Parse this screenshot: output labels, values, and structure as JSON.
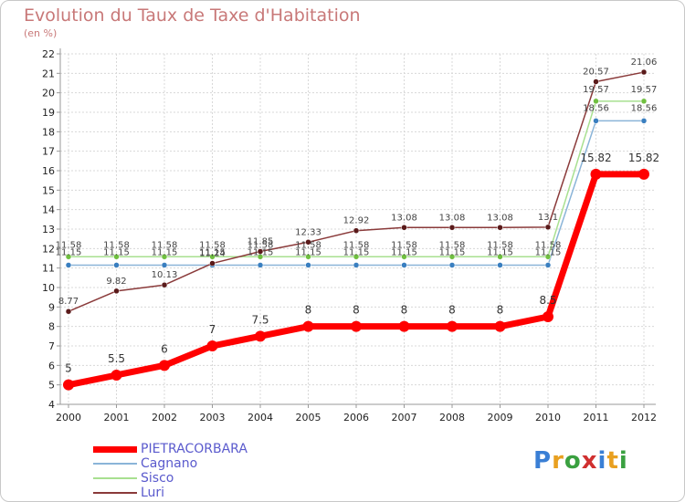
{
  "header": {
    "title": "Evolution du Taux de Taxe d'Habitation",
    "unit": "(en %)"
  },
  "brand": {
    "logo_letters": [
      "P",
      "r",
      "o",
      "x",
      "i",
      "t",
      "i"
    ],
    "logo_colors": [
      "#3a7fd5",
      "#e8a020",
      "#3aa040",
      "#d03030",
      "#3a7fd5",
      "#e8a020",
      "#3aa040"
    ]
  },
  "colors": {
    "grid": "#d8d8d8",
    "axis": "#999999",
    "legend_text": "#5a5acd",
    "title": "#c87878"
  },
  "chart_data": {
    "type": "line",
    "x": [
      "2000",
      "2001",
      "2002",
      "2003",
      "2004",
      "2005",
      "2006",
      "2007",
      "2008",
      "2009",
      "2010",
      "2011",
      "2012"
    ],
    "ylim": [
      4,
      22
    ],
    "yticks": [
      4,
      5,
      6,
      7,
      8,
      9,
      10,
      11,
      12,
      13,
      14,
      15,
      16,
      17,
      18,
      19,
      20,
      21,
      22
    ],
    "grid": true,
    "legend_position": "bottom-left",
    "series": [
      {
        "name": "PIETRACORBARA",
        "color": "#ff0000",
        "marker": "#ff0000",
        "width": 7,
        "values": [
          5,
          5.5,
          6,
          7,
          7.5,
          8,
          8,
          8,
          8,
          8,
          8.5,
          15.82,
          15.82
        ],
        "labels": [
          "5",
          "5.5",
          "6",
          "7",
          "7.5",
          "8",
          "8",
          "8",
          "8",
          "8",
          "8.5",
          "15.82",
          "15.82"
        ]
      },
      {
        "name": "Cagnano",
        "color": "#8ab4d8",
        "marker": "#3a7fc0",
        "width": 1.5,
        "values": [
          11.15,
          11.15,
          11.15,
          11.15,
          11.15,
          11.15,
          11.15,
          11.15,
          11.15,
          11.15,
          11.15,
          18.56,
          18.56
        ],
        "labels": [
          "11.15",
          "11.15",
          "11.15",
          "11.15",
          "11.15",
          "11.15",
          "11.15",
          "11.15",
          "11.15",
          "11.15",
          "11.15",
          "18.56",
          "18.56"
        ]
      },
      {
        "name": "Sisco",
        "color": "#a8e090",
        "marker": "#70c040",
        "width": 1.5,
        "values": [
          11.58,
          11.58,
          11.58,
          11.58,
          11.58,
          11.58,
          11.58,
          11.58,
          11.58,
          11.58,
          11.58,
          19.57,
          19.57
        ],
        "labels": [
          "11.58",
          "11.58",
          "11.58",
          "11.58",
          "11.58",
          "11.58",
          "11.58",
          "11.58",
          "11.58",
          "11.58",
          "11.58",
          "19.57",
          "19.57"
        ]
      },
      {
        "name": "Luri",
        "color": "#8a3a3a",
        "marker": "#5a1a1a",
        "width": 1.5,
        "values": [
          8.77,
          9.82,
          10.13,
          11.24,
          11.85,
          12.33,
          12.92,
          13.08,
          13.08,
          13.08,
          13.1,
          20.57,
          21.06
        ],
        "labels": [
          "8.77",
          "9.82",
          "10.13",
          "11.24",
          "11.85",
          "12.33",
          "12.92",
          "13.08",
          "13.08",
          "13.08",
          "13.1",
          "20.57",
          "21.06"
        ]
      }
    ]
  }
}
